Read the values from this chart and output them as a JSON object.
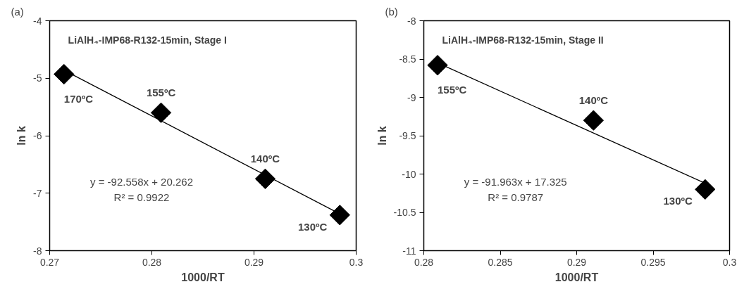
{
  "chart_data": [
    {
      "type": "scatter",
      "title": "(a)",
      "subtitle": "LiAlH₄-IMP68-R132-15min, Stage I",
      "xlabel": "1000/RT",
      "ylabel": "ln k",
      "grid": false,
      "xlim": [
        0.27,
        0.3
      ],
      "xticks": [
        0.27,
        0.28,
        0.29,
        0.3
      ],
      "ylim": [
        -8,
        -4
      ],
      "yticks": [
        -8,
        -7,
        -6,
        -5,
        -4
      ],
      "series": [
        {
          "marker": "diamond",
          "color": "#000000",
          "x": [
            0.2714,
            0.2809,
            0.2911,
            0.2984
          ],
          "values": [
            -4.93,
            -5.6,
            -6.75,
            -7.38
          ]
        },
        {
          "type": "line",
          "color": "#000000",
          "x": [
            0.2714,
            0.2984
          ],
          "values": [
            -4.86,
            -7.36
          ]
        }
      ],
      "annotations": [
        {
          "text": "170ºC",
          "x": 0.2714,
          "y": -4.93
        },
        {
          "text": "155ºC",
          "x": 0.2809,
          "y": -5.6
        },
        {
          "text": "140ºC",
          "x": 0.2911,
          "y": -6.75
        },
        {
          "text": "130ºC",
          "x": 0.2984,
          "y": -7.38
        },
        "y = -92.558x + 20.262",
        "R² = 0.9922"
      ]
    },
    {
      "type": "scatter",
      "title": "(b)",
      "subtitle": "LiAlH₄-IMP68-R132-15min, Stage II",
      "xlabel": "1000/RT",
      "ylabel": "ln k",
      "grid": false,
      "xlim": [
        0.28,
        0.3
      ],
      "xticks": [
        0.28,
        0.285,
        0.29,
        0.295,
        0.3
      ],
      "ylim": [
        -11,
        -8
      ],
      "yticks": [
        -11,
        -10.5,
        -10,
        -9.5,
        -9,
        -8.5,
        -8
      ],
      "series": [
        {
          "marker": "diamond",
          "color": "#000000",
          "x": [
            0.2809,
            0.2911,
            0.2984
          ],
          "values": [
            -8.58,
            -9.3,
            -10.2
          ]
        },
        {
          "type": "line",
          "color": "#000000",
          "x": [
            0.2809,
            0.2984
          ],
          "values": [
            -8.55,
            -10.12
          ]
        }
      ],
      "annotations": [
        {
          "text": "155ºC",
          "x": 0.2809,
          "y": -8.58
        },
        {
          "text": "140ºC",
          "x": 0.2911,
          "y": -9.3
        },
        {
          "text": "130ºC",
          "x": 0.2984,
          "y": -10.2
        },
        "y = -91.963x + 17.325",
        "R² = 0.9787"
      ]
    }
  ]
}
